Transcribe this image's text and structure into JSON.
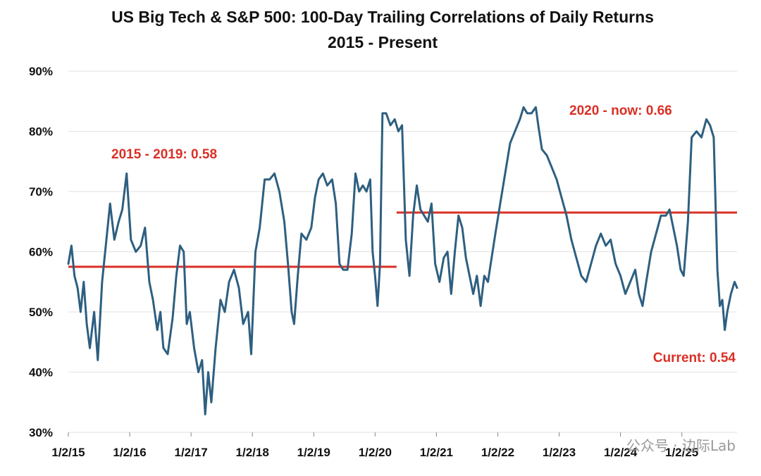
{
  "chart_data": {
    "type": "line",
    "title": "US Big Tech & S&P 500: 100-Day Trailing Correlations of Daily Returns",
    "subtitle": "2015 - Present",
    "xlabel": "",
    "ylabel": "",
    "ylim": [
      30,
      90
    ],
    "xlim": [
      2015.0,
      2025.9
    ],
    "y_ticks": [
      {
        "value": 30,
        "label": "30%"
      },
      {
        "value": 40,
        "label": "40%"
      },
      {
        "value": 50,
        "label": "50%"
      },
      {
        "value": 60,
        "label": "60%"
      },
      {
        "value": 70,
        "label": "70%"
      },
      {
        "value": 80,
        "label": "80%"
      },
      {
        "value": 90,
        "label": "90%"
      }
    ],
    "x_ticks": [
      {
        "value": 2015.0,
        "label": "1/2/15"
      },
      {
        "value": 2016.0,
        "label": "1/2/16"
      },
      {
        "value": 2017.0,
        "label": "1/2/17"
      },
      {
        "value": 2018.0,
        "label": "1/2/18"
      },
      {
        "value": 2019.0,
        "label": "1/2/19"
      },
      {
        "value": 2020.0,
        "label": "1/2/20"
      },
      {
        "value": 2021.0,
        "label": "1/2/21"
      },
      {
        "value": 2022.0,
        "label": "1/2/22"
      },
      {
        "value": 2023.0,
        "label": "1/2/23"
      },
      {
        "value": 2024.0,
        "label": "1/2/24"
      },
      {
        "value": 2025.0,
        "label": "1/2/25"
      }
    ],
    "grid": true,
    "colors": {
      "series": "#2e5f80",
      "average": "#d93025",
      "annotation": "#d93025"
    },
    "series": [
      {
        "name": "100-Day Trailing Correlation",
        "points": [
          [
            2015.0,
            58
          ],
          [
            2015.05,
            61
          ],
          [
            2015.1,
            56
          ],
          [
            2015.15,
            54
          ],
          [
            2015.2,
            50
          ],
          [
            2015.25,
            55
          ],
          [
            2015.3,
            48
          ],
          [
            2015.35,
            44
          ],
          [
            2015.42,
            50
          ],
          [
            2015.48,
            42
          ],
          [
            2015.55,
            55
          ],
          [
            2015.62,
            62
          ],
          [
            2015.68,
            68
          ],
          [
            2015.75,
            62
          ],
          [
            2015.82,
            65
          ],
          [
            2015.88,
            67
          ],
          [
            2015.95,
            73
          ],
          [
            2016.02,
            62
          ],
          [
            2016.1,
            60
          ],
          [
            2016.18,
            61
          ],
          [
            2016.25,
            64
          ],
          [
            2016.32,
            55
          ],
          [
            2016.38,
            52
          ],
          [
            2016.45,
            47
          ],
          [
            2016.5,
            50
          ],
          [
            2016.55,
            44
          ],
          [
            2016.62,
            43
          ],
          [
            2016.7,
            49
          ],
          [
            2016.76,
            56
          ],
          [
            2016.82,
            61
          ],
          [
            2016.88,
            60
          ],
          [
            2016.93,
            48
          ],
          [
            2016.98,
            50
          ],
          [
            2017.05,
            44
          ],
          [
            2017.12,
            40
          ],
          [
            2017.18,
            42
          ],
          [
            2017.23,
            33
          ],
          [
            2017.28,
            40
          ],
          [
            2017.33,
            35
          ],
          [
            2017.4,
            44
          ],
          [
            2017.48,
            52
          ],
          [
            2017.55,
            50
          ],
          [
            2017.62,
            55
          ],
          [
            2017.7,
            57
          ],
          [
            2017.78,
            54
          ],
          [
            2017.85,
            48
          ],
          [
            2017.93,
            50
          ],
          [
            2017.98,
            43
          ],
          [
            2018.05,
            60
          ],
          [
            2018.12,
            64
          ],
          [
            2018.2,
            72
          ],
          [
            2018.28,
            72
          ],
          [
            2018.36,
            73
          ],
          [
            2018.44,
            70
          ],
          [
            2018.52,
            65
          ],
          [
            2018.58,
            58
          ],
          [
            2018.64,
            50
          ],
          [
            2018.68,
            48
          ],
          [
            2018.74,
            56
          ],
          [
            2018.8,
            63
          ],
          [
            2018.88,
            62
          ],
          [
            2018.96,
            64
          ],
          [
            2019.02,
            69
          ],
          [
            2019.08,
            72
          ],
          [
            2019.15,
            73
          ],
          [
            2019.22,
            71
          ],
          [
            2019.3,
            72
          ],
          [
            2019.36,
            68
          ],
          [
            2019.42,
            58
          ],
          [
            2019.48,
            57
          ],
          [
            2019.55,
            57
          ],
          [
            2019.62,
            63
          ],
          [
            2019.68,
            73
          ],
          [
            2019.74,
            70
          ],
          [
            2019.8,
            71
          ],
          [
            2019.86,
            70
          ],
          [
            2019.92,
            72
          ],
          [
            2019.96,
            60
          ],
          [
            2020.0,
            56
          ],
          [
            2020.04,
            51
          ],
          [
            2020.08,
            58
          ],
          [
            2020.12,
            83
          ],
          [
            2020.18,
            83
          ],
          [
            2020.25,
            81
          ],
          [
            2020.32,
            82
          ],
          [
            2020.38,
            80
          ],
          [
            2020.44,
            81
          ],
          [
            2020.5,
            62
          ],
          [
            2020.56,
            56
          ],
          [
            2020.62,
            66
          ],
          [
            2020.68,
            71
          ],
          [
            2020.74,
            67
          ],
          [
            2020.8,
            66
          ],
          [
            2020.86,
            65
          ],
          [
            2020.92,
            68
          ],
          [
            2020.98,
            58
          ],
          [
            2021.05,
            55
          ],
          [
            2021.12,
            59
          ],
          [
            2021.18,
            60
          ],
          [
            2021.24,
            53
          ],
          [
            2021.3,
            60
          ],
          [
            2021.36,
            66
          ],
          [
            2021.42,
            64
          ],
          [
            2021.48,
            59
          ],
          [
            2021.54,
            56
          ],
          [
            2021.6,
            53
          ],
          [
            2021.66,
            56
          ],
          [
            2021.72,
            51
          ],
          [
            2021.78,
            56
          ],
          [
            2021.84,
            55
          ],
          [
            2021.9,
            59
          ],
          [
            2021.96,
            63
          ],
          [
            2022.04,
            68
          ],
          [
            2022.12,
            73
          ],
          [
            2022.2,
            78
          ],
          [
            2022.28,
            80
          ],
          [
            2022.36,
            82
          ],
          [
            2022.42,
            84
          ],
          [
            2022.48,
            83
          ],
          [
            2022.55,
            83
          ],
          [
            2022.62,
            84
          ],
          [
            2022.66,
            81
          ],
          [
            2022.72,
            77
          ],
          [
            2022.8,
            76
          ],
          [
            2022.88,
            74
          ],
          [
            2022.96,
            72
          ],
          [
            2023.04,
            69
          ],
          [
            2023.12,
            66
          ],
          [
            2023.2,
            62
          ],
          [
            2023.28,
            59
          ],
          [
            2023.36,
            56
          ],
          [
            2023.44,
            55
          ],
          [
            2023.52,
            58
          ],
          [
            2023.6,
            61
          ],
          [
            2023.68,
            63
          ],
          [
            2023.76,
            61
          ],
          [
            2023.84,
            62
          ],
          [
            2023.92,
            58
          ],
          [
            2024.0,
            56
          ],
          [
            2024.08,
            53
          ],
          [
            2024.16,
            55
          ],
          [
            2024.24,
            57
          ],
          [
            2024.3,
            53
          ],
          [
            2024.36,
            51
          ],
          [
            2024.42,
            55
          ],
          [
            2024.5,
            60
          ],
          [
            2024.58,
            63
          ],
          [
            2024.66,
            66
          ],
          [
            2024.74,
            66
          ],
          [
            2024.8,
            67
          ],
          [
            2024.86,
            64
          ],
          [
            2024.92,
            61
          ],
          [
            2024.98,
            57
          ],
          [
            2025.03,
            56
          ],
          [
            2025.1,
            65
          ],
          [
            2025.16,
            79
          ],
          [
            2025.24,
            80
          ],
          [
            2025.32,
            79
          ],
          [
            2025.4,
            82
          ],
          [
            2025.46,
            81
          ],
          [
            2025.52,
            79
          ],
          [
            2025.58,
            57
          ],
          [
            2025.62,
            51
          ],
          [
            2025.66,
            52
          ],
          [
            2025.7,
            47
          ],
          [
            2025.74,
            50
          ],
          [
            2025.8,
            53
          ],
          [
            2025.86,
            55
          ],
          [
            2025.9,
            54
          ]
        ]
      }
    ],
    "averages": [
      {
        "label": "2015-2019 average",
        "from": 2015.0,
        "to": 2020.35,
        "value": 57.5
      },
      {
        "label": "2020-now average",
        "from": 2020.35,
        "to": 2025.9,
        "value": 66.5
      }
    ],
    "annotations": [
      {
        "text": "2015 - 2019: 0.58"
      },
      {
        "text": "2020 - now: 0.66"
      },
      {
        "text": "Current: 0.54"
      }
    ]
  },
  "watermark": {
    "text": "公众号 · 边际Lab"
  }
}
